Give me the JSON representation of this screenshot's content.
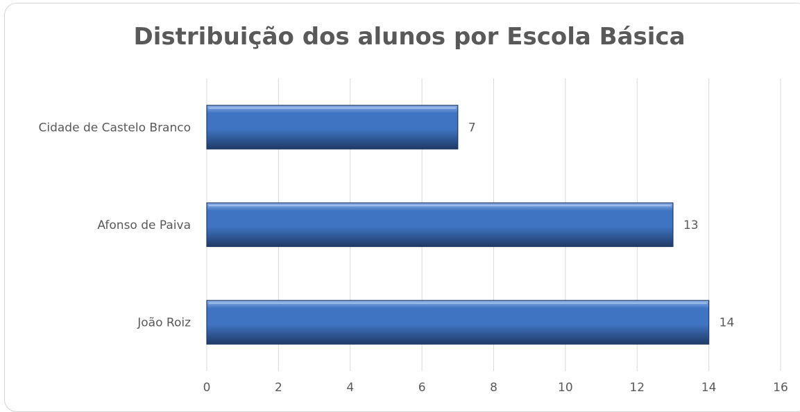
{
  "chart_data": {
    "type": "bar",
    "orientation": "horizontal",
    "title": "Distribuição dos alunos por Escola Básica",
    "xlabel": "",
    "ylabel": "",
    "categories": [
      "Cidade de Castelo Branco",
      "Afonso de Paiva",
      "João Roiz"
    ],
    "values": [
      7,
      13,
      14
    ],
    "xlim": [
      0,
      16
    ],
    "x_ticks": [
      0,
      2,
      4,
      6,
      8,
      10,
      12,
      14,
      16
    ],
    "data_labels": true,
    "grid": "vertical",
    "legend": "none",
    "colors": {
      "bar_fill": "#3f74c2",
      "bar_highlight": "#8fb3e8",
      "bar_edge": "#1f3a66",
      "grid": "#d9d9d9",
      "text": "#595959"
    }
  }
}
